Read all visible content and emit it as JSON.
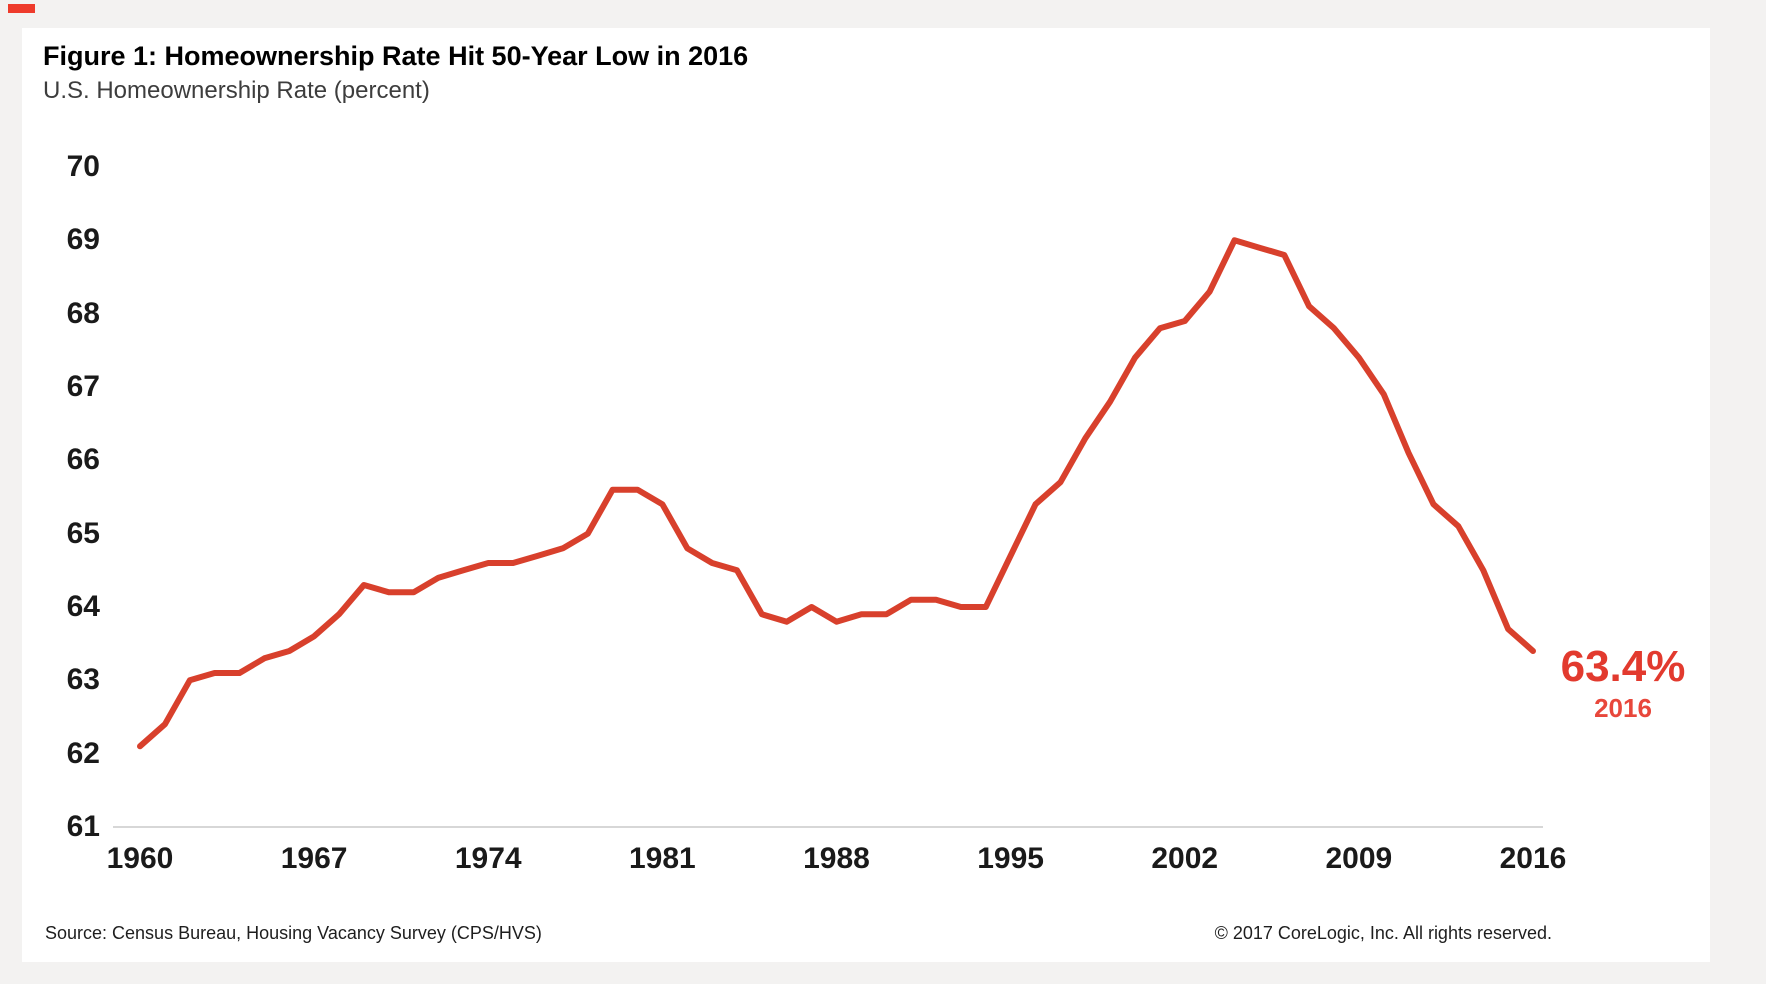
{
  "header": {
    "title": "Figure 1: Homeownership Rate Hit 50-Year Low in 2016",
    "subtitle": "U.S. Homeownership Rate (percent)"
  },
  "annotation": {
    "value": "63.4%",
    "year": "2016"
  },
  "footer": {
    "source": "Source: Census Bureau, Housing Vacancy Survey (CPS/HVS)",
    "copyright": "© 2017 CoreLogic, Inc. All rights reserved."
  },
  "colors": {
    "line": "#d8402c",
    "annotation_value": "#e23a2e",
    "annotation_year": "#e8473b",
    "axis_line": "#d7d7d7",
    "page_background": "#f3f2f1",
    "card_background": "#ffffff",
    "tick_text": "#1a1a1a",
    "corner_mark": "#ee3b2c"
  },
  "chart_data": {
    "type": "line",
    "title": "Figure 1: Homeownership Rate Hit 50-Year Low in 2016",
    "subtitle": "U.S. Homeownership Rate (percent)",
    "series_name": "U.S. Homeownership Rate (percent)",
    "x": [
      1960,
      1961,
      1962,
      1963,
      1964,
      1965,
      1966,
      1967,
      1968,
      1969,
      1970,
      1971,
      1972,
      1973,
      1974,
      1975,
      1976,
      1977,
      1978,
      1979,
      1980,
      1981,
      1982,
      1983,
      1984,
      1985,
      1986,
      1987,
      1988,
      1989,
      1990,
      1991,
      1992,
      1993,
      1994,
      1995,
      1996,
      1997,
      1998,
      1999,
      2000,
      2001,
      2002,
      2003,
      2004,
      2005,
      2006,
      2007,
      2008,
      2009,
      2010,
      2011,
      2012,
      2013,
      2014,
      2015,
      2016
    ],
    "values": [
      62.1,
      62.4,
      63.0,
      63.1,
      63.1,
      63.3,
      63.4,
      63.6,
      63.9,
      64.3,
      64.2,
      64.2,
      64.4,
      64.5,
      64.6,
      64.6,
      64.7,
      64.8,
      65.0,
      65.6,
      65.6,
      65.4,
      64.8,
      64.6,
      64.5,
      63.9,
      63.8,
      64.0,
      63.8,
      63.9,
      63.9,
      64.1,
      64.1,
      64.0,
      64.0,
      64.7,
      65.4,
      65.7,
      66.3,
      66.8,
      67.4,
      67.8,
      67.9,
      68.3,
      69.0,
      68.9,
      68.8,
      68.1,
      67.8,
      67.4,
      66.9,
      66.1,
      65.4,
      65.1,
      64.5,
      63.7,
      63.4
    ],
    "xticks": [
      1960,
      1967,
      1974,
      1981,
      1988,
      1995,
      2002,
      2009,
      2016
    ],
    "yticks": [
      70,
      69,
      68,
      67,
      66,
      65,
      64,
      63,
      62,
      61
    ],
    "xlim": [
      1960,
      2016
    ],
    "ylim": [
      61,
      70
    ],
    "xlabel": "",
    "ylabel": "U.S. Homeownership Rate (percent)",
    "grid": false,
    "legend": "none",
    "end_label": {
      "text": "63.4%",
      "sub": "2016",
      "x": 2016,
      "y": 63.4
    }
  }
}
